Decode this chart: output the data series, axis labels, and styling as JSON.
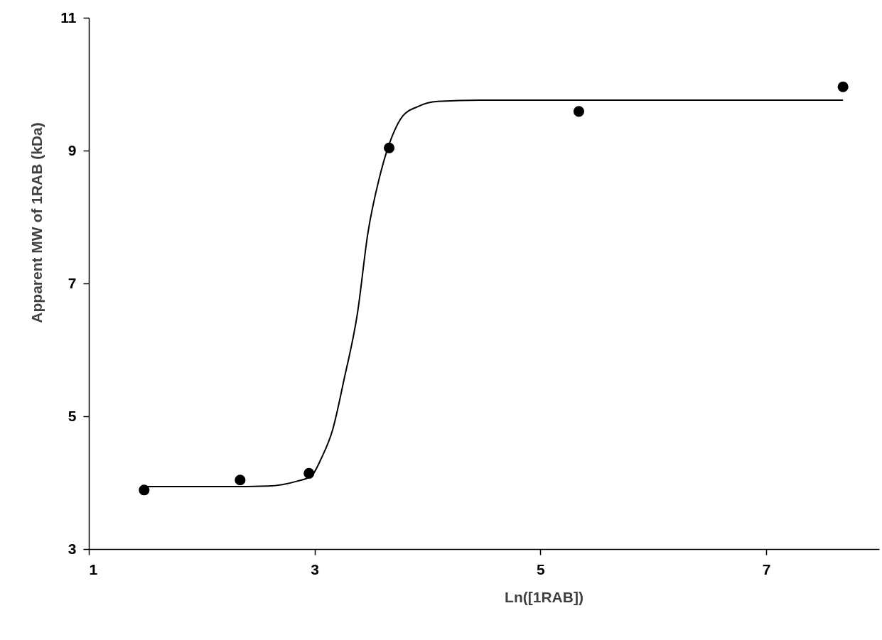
{
  "chart_data": {
    "type": "scatter",
    "xlabel": "Ln([1RAB])",
    "ylabel": "Apparent MW of 1RAB (kDa)",
    "xlim": [
      1,
      8
    ],
    "ylim": [
      3,
      11
    ],
    "xticks": [
      1,
      3,
      5,
      7
    ],
    "yticks": [
      3,
      5,
      7,
      9,
      11
    ],
    "grid": false,
    "marker": "circle",
    "series": [
      {
        "type": "scatter",
        "color": "#000000",
        "x": [
          1.49,
          2.34,
          2.95,
          3.66,
          5.34,
          7.68
        ],
        "values": [
          3.89,
          4.04,
          4.14,
          9.04,
          9.59,
          9.96
        ]
      },
      {
        "type": "line",
        "color": "#000000",
        "line_style": "solid",
        "marker": "none",
        "x": [
          1.49,
          2.2,
          2.59,
          2.84,
          2.97,
          3.06,
          3.16,
          3.26,
          3.38,
          3.47,
          3.59,
          3.69,
          3.78,
          3.91,
          4.09,
          4.47,
          7.68
        ],
        "values": [
          3.94,
          3.94,
          3.95,
          4.02,
          4.1,
          4.37,
          4.8,
          5.55,
          6.56,
          7.74,
          8.7,
          9.23,
          9.52,
          9.66,
          9.74,
          9.76,
          9.76
        ]
      }
    ]
  }
}
